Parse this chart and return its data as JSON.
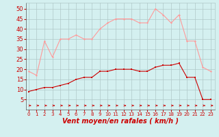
{
  "hours": [
    0,
    1,
    2,
    3,
    4,
    5,
    6,
    7,
    8,
    9,
    10,
    11,
    12,
    13,
    14,
    15,
    16,
    17,
    18,
    19,
    20,
    21,
    22,
    23
  ],
  "mean_wind": [
    9,
    10,
    11,
    11,
    12,
    13,
    15,
    16,
    16,
    19,
    19,
    20,
    20,
    20,
    19,
    19,
    21,
    22,
    22,
    23,
    16,
    16,
    5,
    5
  ],
  "gust_wind": [
    19,
    17,
    34,
    26,
    35,
    35,
    37,
    35,
    35,
    40,
    43,
    45,
    45,
    45,
    43,
    43,
    50,
    47,
    43,
    47,
    34,
    34,
    21,
    19
  ],
  "bg_color": "#d4f0f0",
  "grid_color": "#b0c8c8",
  "mean_line_color": "#cc0000",
  "gust_line_color": "#ff9999",
  "arrow_color": "#cc0000",
  "xlabel": "Vent moyen/en rafales ( km/h )",
  "xlabel_color": "#cc0000",
  "ylim": [
    0,
    53
  ],
  "yticks": [
    5,
    10,
    15,
    20,
    25,
    30,
    35,
    40,
    45,
    50
  ],
  "tick_color": "#cc0000",
  "tick_fontsize": 6,
  "xlabel_fontsize": 7
}
